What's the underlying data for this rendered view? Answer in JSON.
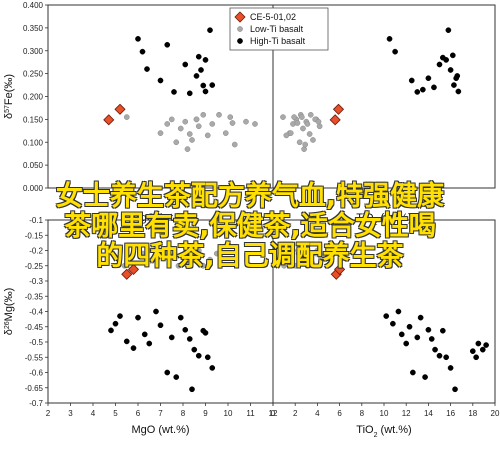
{
  "overlay_text": {
    "line1": "女士养生茶配方养气血,特强健康",
    "line2": "茶哪里有卖,保健茶,适合女性喝",
    "line3": "的四种茶,自己调配养生茶"
  },
  "colors": {
    "ce5": "#e8502a",
    "low_ti": "#a9a9a9",
    "high_ti": "#000000",
    "overlay": "#ffe000"
  },
  "chart_data": [
    {
      "type": "scatter",
      "panel": "top-left",
      "xlabel": "MgO (wt.%)",
      "ylabel": "δ57Fe(‰)",
      "xlim": [
        2,
        12
      ],
      "ylim": [
        0.0,
        0.4
      ],
      "xticks": [],
      "yticks": [
        0.0,
        0.05,
        0.1,
        0.15,
        0.2,
        0.25,
        0.3,
        0.35,
        0.4
      ],
      "ytick_labels": [
        "0.000",
        "0.050",
        "0.100",
        "0.150",
        "0.200",
        "0.250",
        "0.300",
        "0.350",
        "0.400"
      ],
      "series": [
        {
          "name": "CE-5-01,02",
          "marker": "diamond",
          "points": [
            [
              4.7,
              0.149
            ],
            [
              5.2,
              0.172
            ]
          ]
        },
        {
          "name": "Low-Ti basalt",
          "marker": "circle",
          "points": [
            [
              5.5,
              0.155
            ],
            [
              7.0,
              0.12
            ],
            [
              7.3,
              0.14
            ],
            [
              7.5,
              0.15
            ],
            [
              7.7,
              0.1
            ],
            [
              7.9,
              0.13
            ],
            [
              8.1,
              0.145
            ],
            [
              8.3,
              0.118
            ],
            [
              8.4,
              0.105
            ],
            [
              8.6,
              0.15
            ],
            [
              8.7,
              0.135
            ],
            [
              8.9,
              0.16
            ],
            [
              9.1,
              0.115
            ],
            [
              9.3,
              0.14
            ],
            [
              8.2,
              0.085
            ],
            [
              8.6,
              0.15
            ],
            [
              9.9,
              0.12
            ],
            [
              10.2,
              0.142
            ],
            [
              10.3,
              0.095
            ],
            [
              10.8,
              0.145
            ],
            [
              11.2,
              0.14
            ],
            [
              9.6,
              0.16
            ],
            [
              10.1,
              0.155
            ]
          ]
        },
        {
          "name": "High-Ti basalt",
          "marker": "circle",
          "points": [
            [
              6.0,
              0.326
            ],
            [
              6.2,
              0.298
            ],
            [
              6.4,
              0.26
            ],
            [
              7.0,
              0.235
            ],
            [
              7.3,
              0.313
            ],
            [
              7.6,
              0.21
            ],
            [
              8.1,
              0.27
            ],
            [
              8.3,
              0.207
            ],
            [
              8.6,
              0.245
            ],
            [
              8.7,
              0.287
            ],
            [
              8.8,
              0.258
            ],
            [
              8.9,
              0.224
            ],
            [
              9.0,
              0.28
            ],
            [
              9.2,
              0.345
            ],
            [
              9.3,
              0.225
            ],
            [
              9.0,
              0.211
            ]
          ]
        }
      ]
    },
    {
      "type": "scatter",
      "panel": "top-right",
      "xlabel": "TiO2 (wt.%)",
      "xlim": [
        0,
        20
      ],
      "ylim": [
        0.0,
        0.4
      ],
      "xticks": [],
      "yticks": [],
      "series": [
        {
          "name": "CE-5-01,02",
          "marker": "diamond",
          "points": [
            [
              5.6,
              0.149
            ],
            [
              5.9,
              0.172
            ]
          ]
        },
        {
          "name": "Low-Ti basalt",
          "marker": "circle",
          "points": [
            [
              0.9,
              0.155
            ],
            [
              1.5,
              0.12
            ],
            [
              1.8,
              0.14
            ],
            [
              2.1,
              0.15
            ],
            [
              2.4,
              0.1
            ],
            [
              2.7,
              0.13
            ],
            [
              3.0,
              0.145
            ],
            [
              3.3,
              0.118
            ],
            [
              3.6,
              0.105
            ],
            [
              3.9,
              0.15
            ],
            [
              4.2,
              0.135
            ],
            [
              2.5,
              0.16
            ],
            [
              1.2,
              0.115
            ],
            [
              3.1,
              0.14
            ],
            [
              2.8,
              0.085
            ],
            [
              3.8,
              0.15
            ],
            [
              1.6,
              0.12
            ],
            [
              2.2,
              0.142
            ],
            [
              2.9,
              0.095
            ],
            [
              4.1,
              0.145
            ],
            [
              1.9,
              0.155
            ],
            [
              3.4,
              0.16
            ],
            [
              2.6,
              0.155
            ]
          ]
        },
        {
          "name": "High-Ti basalt",
          "marker": "circle",
          "points": [
            [
              10.5,
              0.326
            ],
            [
              11.0,
              0.298
            ],
            [
              12.5,
              0.235
            ],
            [
              13.0,
              0.21
            ],
            [
              13.5,
              0.215
            ],
            [
              14.0,
              0.24
            ],
            [
              14.5,
              0.22
            ],
            [
              15.0,
              0.27
            ],
            [
              15.3,
              0.285
            ],
            [
              15.6,
              0.28
            ],
            [
              15.8,
              0.345
            ],
            [
              16.0,
              0.258
            ],
            [
              16.2,
              0.29
            ],
            [
              16.3,
              0.225
            ],
            [
              16.5,
              0.24
            ],
            [
              16.6,
              0.245
            ],
            [
              16.7,
              0.211
            ]
          ]
        }
      ]
    },
    {
      "type": "scatter",
      "panel": "bottom-left",
      "xlabel": "MgO (wt.%)",
      "ylabel": "δ26Mg(‰)",
      "xlim": [
        2,
        12
      ],
      "ylim": [
        -0.7,
        -0.1
      ],
      "xticks": [
        2,
        3,
        4,
        5,
        6,
        7,
        8,
        9,
        10,
        11,
        12
      ],
      "xtick_labels": [
        "2",
        "3",
        "4",
        "5",
        "6",
        "7",
        "8",
        "9",
        "10",
        "11",
        "12"
      ],
      "yticks": [
        -0.1,
        -0.15,
        -0.2,
        -0.25,
        -0.3,
        -0.35,
        -0.4,
        -0.45,
        -0.5,
        -0.55,
        -0.6,
        -0.65,
        -0.7
      ],
      "ytick_labels": [
        "-0.1",
        "-0.15",
        "-0.2",
        "-0.25",
        "-0.3",
        "-0.35",
        "-0.4",
        "-0.45",
        "-0.5",
        "-0.55",
        "-0.6",
        "-0.65",
        "-0.7"
      ],
      "series": [
        {
          "name": "CE-5-01,02",
          "marker": "diamond",
          "points": [
            [
              5.5,
              -0.278
            ],
            [
              5.8,
              -0.262
            ]
          ]
        },
        {
          "name": "Low-Ti basalt",
          "marker": "circle",
          "points": [
            [
              5.4,
              -0.25
            ],
            [
              6.5,
              -0.2
            ],
            [
              7.2,
              -0.21
            ],
            [
              7.5,
              -0.22
            ],
            [
              7.8,
              -0.25
            ],
            [
              8.1,
              -0.24
            ],
            [
              8.3,
              -0.21
            ],
            [
              8.6,
              -0.22
            ],
            [
              8.9,
              -0.25
            ],
            [
              9.2,
              -0.23
            ],
            [
              9.5,
              -0.21
            ],
            [
              7.4,
              -0.19
            ],
            [
              8.7,
              -0.2
            ],
            [
              6.2,
              -0.21
            ]
          ]
        },
        {
          "name": "High-Ti basalt",
          "marker": "circle",
          "points": [
            [
              4.8,
              -0.462
            ],
            [
              5.0,
              -0.44
            ],
            [
              5.2,
              -0.415
            ],
            [
              5.5,
              -0.498
            ],
            [
              5.8,
              -0.52
            ],
            [
              6.0,
              -0.42
            ],
            [
              6.3,
              -0.475
            ],
            [
              6.5,
              -0.505
            ],
            [
              6.8,
              -0.4
            ],
            [
              7.0,
              -0.445
            ],
            [
              7.3,
              -0.6
            ],
            [
              7.5,
              -0.485
            ],
            [
              7.7,
              -0.615
            ],
            [
              7.9,
              -0.42
            ],
            [
              8.1,
              -0.46
            ],
            [
              8.3,
              -0.49
            ],
            [
              8.5,
              -0.525
            ],
            [
              8.7,
              -0.545
            ],
            [
              8.9,
              -0.463
            ],
            [
              9.1,
              -0.55
            ],
            [
              9.3,
              -0.585
            ],
            [
              8.4,
              -0.655
            ],
            [
              9.0,
              -0.47
            ]
          ]
        }
      ]
    },
    {
      "type": "scatter",
      "panel": "bottom-right",
      "xlabel": "TiO2 (wt.%)",
      "xlim": [
        0,
        20
      ],
      "ylim": [
        -0.7,
        -0.1
      ],
      "xticks": [
        0,
        2,
        4,
        6,
        8,
        10,
        12,
        14,
        16,
        18,
        20
      ],
      "xtick_labels": [
        "0",
        "2",
        "4",
        "6",
        "8",
        "10",
        "12",
        "14",
        "16",
        "18",
        "20"
      ],
      "yticks": [],
      "series": [
        {
          "name": "CE-5-01,02",
          "marker": "diamond",
          "points": [
            [
              5.7,
              -0.278
            ],
            [
              6.0,
              -0.262
            ]
          ]
        },
        {
          "name": "Low-Ti basalt",
          "marker": "circle",
          "points": [
            [
              1.0,
              -0.25
            ],
            [
              1.8,
              -0.2
            ],
            [
              2.3,
              -0.21
            ],
            [
              2.7,
              -0.22
            ],
            [
              3.1,
              -0.25
            ],
            [
              3.5,
              -0.24
            ],
            [
              3.9,
              -0.21
            ],
            [
              4.3,
              -0.22
            ],
            [
              2.0,
              -0.25
            ],
            [
              2.9,
              -0.23
            ],
            [
              3.6,
              -0.21
            ],
            [
              1.4,
              -0.19
            ],
            [
              4.0,
              -0.2
            ],
            [
              2.5,
              -0.21
            ]
          ]
        },
        {
          "name": "High-Ti basalt",
          "marker": "circle",
          "points": [
            [
              10.2,
              -0.415
            ],
            [
              10.8,
              -0.44
            ],
            [
              11.3,
              -0.4
            ],
            [
              11.6,
              -0.475
            ],
            [
              12.0,
              -0.505
            ],
            [
              12.3,
              -0.45
            ],
            [
              12.6,
              -0.6
            ],
            [
              13.0,
              -0.485
            ],
            [
              13.3,
              -0.42
            ],
            [
              13.7,
              -0.615
            ],
            [
              14.0,
              -0.46
            ],
            [
              14.3,
              -0.49
            ],
            [
              14.6,
              -0.525
            ],
            [
              15.0,
              -0.545
            ],
            [
              15.3,
              -0.463
            ],
            [
              15.6,
              -0.55
            ],
            [
              16.0,
              -0.585
            ],
            [
              16.4,
              -0.655
            ],
            [
              18.0,
              -0.53
            ],
            [
              18.5,
              -0.505
            ],
            [
              18.9,
              -0.525
            ],
            [
              19.2,
              -0.51
            ],
            [
              18.3,
              -0.55
            ]
          ]
        }
      ]
    }
  ],
  "legend": {
    "items": [
      {
        "label": "CE-5-01,02",
        "marker": "diamond",
        "color": "#e8502a"
      },
      {
        "label": "Low-Ti basalt",
        "marker": "circle",
        "color": "#a9a9a9"
      },
      {
        "label": "High-Ti basalt",
        "marker": "circle",
        "color": "#000000"
      }
    ]
  }
}
